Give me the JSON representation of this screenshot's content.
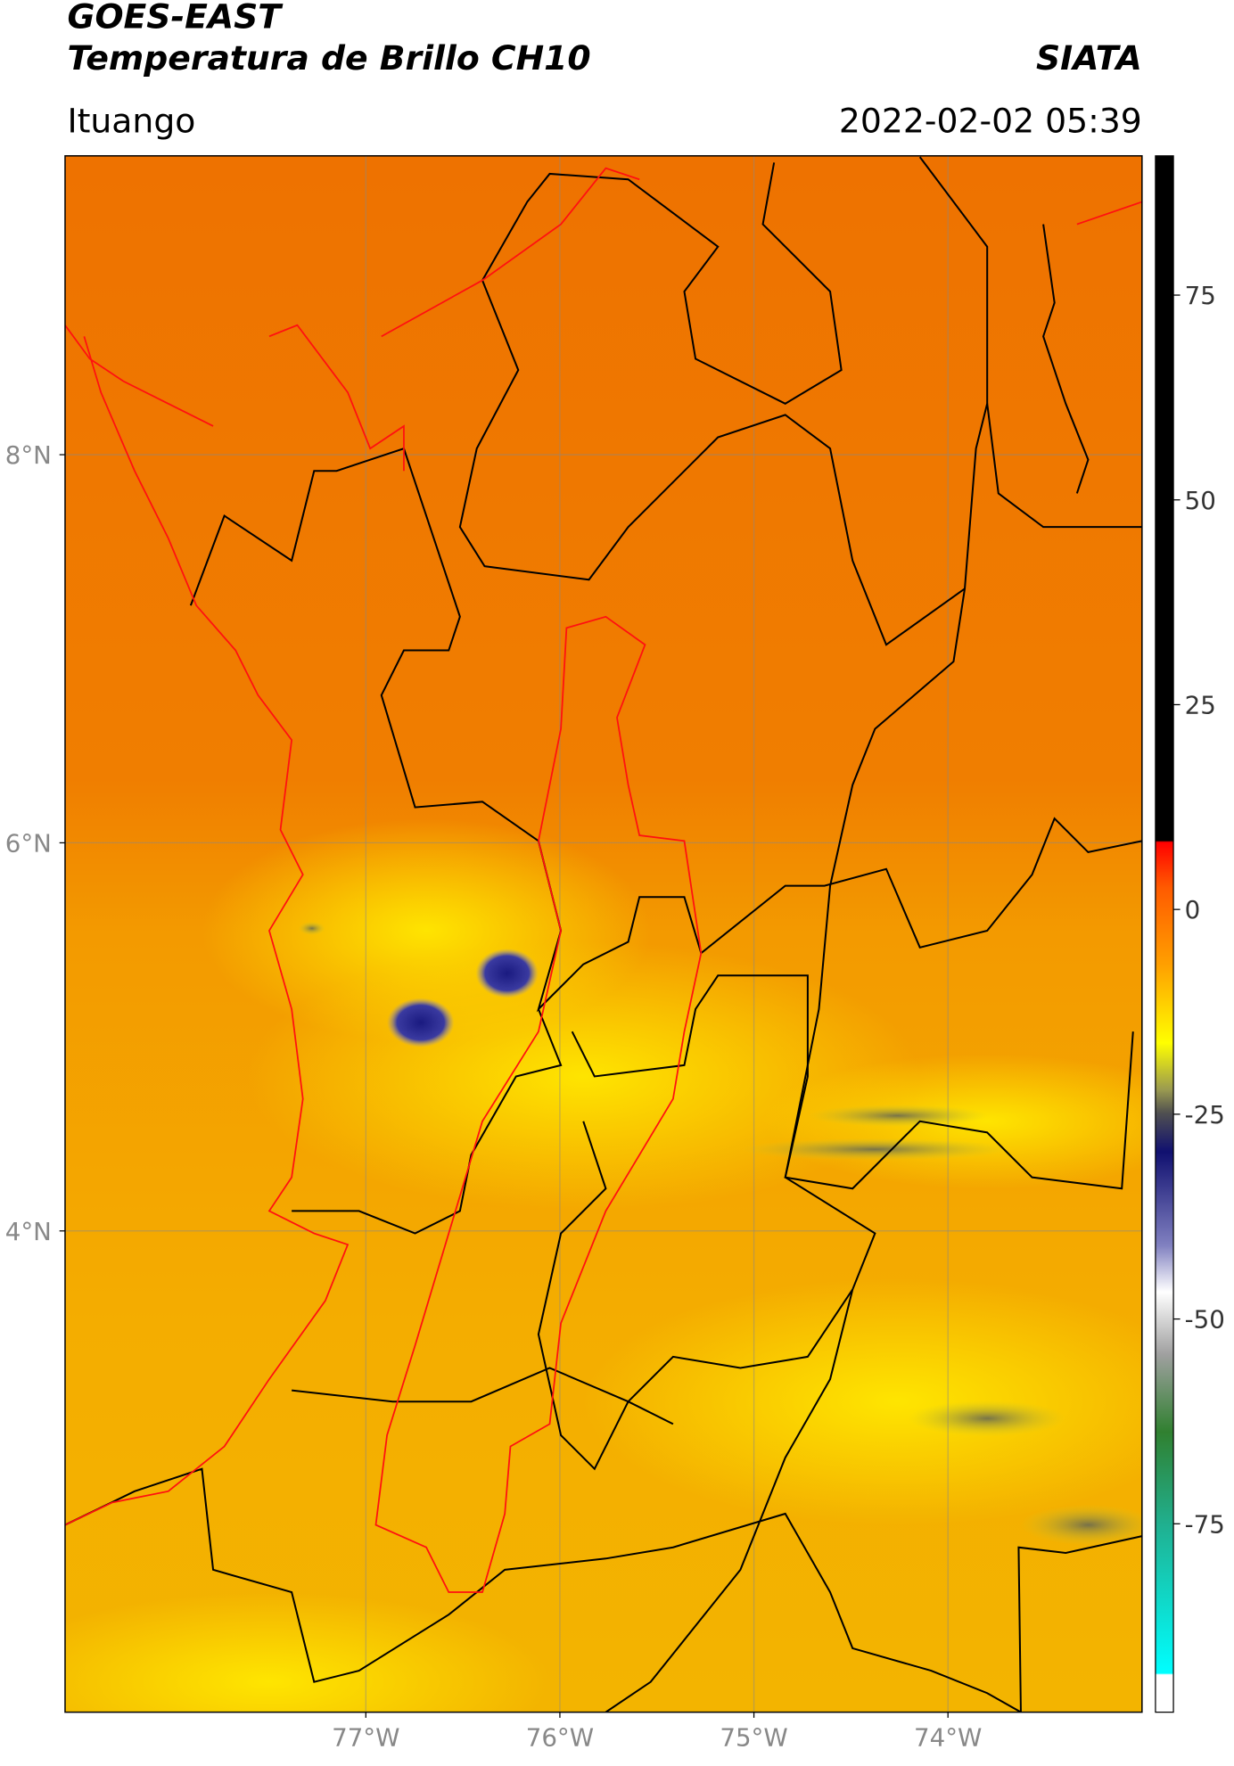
{
  "header": {
    "title": "GOES-EAST",
    "subtitle": "Temperatura de Brillo CH10",
    "source": "SIATA",
    "region": "Ituango",
    "datetime": "2022-02-02 05:39"
  },
  "chart_data": {
    "type": "map",
    "xlim": [
      -78.55,
      -73.0
    ],
    "ylim": [
      1.52,
      9.54
    ],
    "xticks": [
      {
        "value": -77,
        "label": "77°W"
      },
      {
        "value": -76,
        "label": "76°W"
      },
      {
        "value": -75,
        "label": "75°W"
      },
      {
        "value": -74,
        "label": "74°W"
      }
    ],
    "yticks": [
      {
        "value": 4,
        "label": "4°N"
      },
      {
        "value": 6,
        "label": "6°N"
      },
      {
        "value": 8,
        "label": "8°N"
      }
    ],
    "grid": true,
    "colorbar": {
      "lim": [
        -98,
        92
      ],
      "ticks": [
        75,
        50,
        25,
        0,
        -25,
        -50,
        -75
      ]
    }
  }
}
